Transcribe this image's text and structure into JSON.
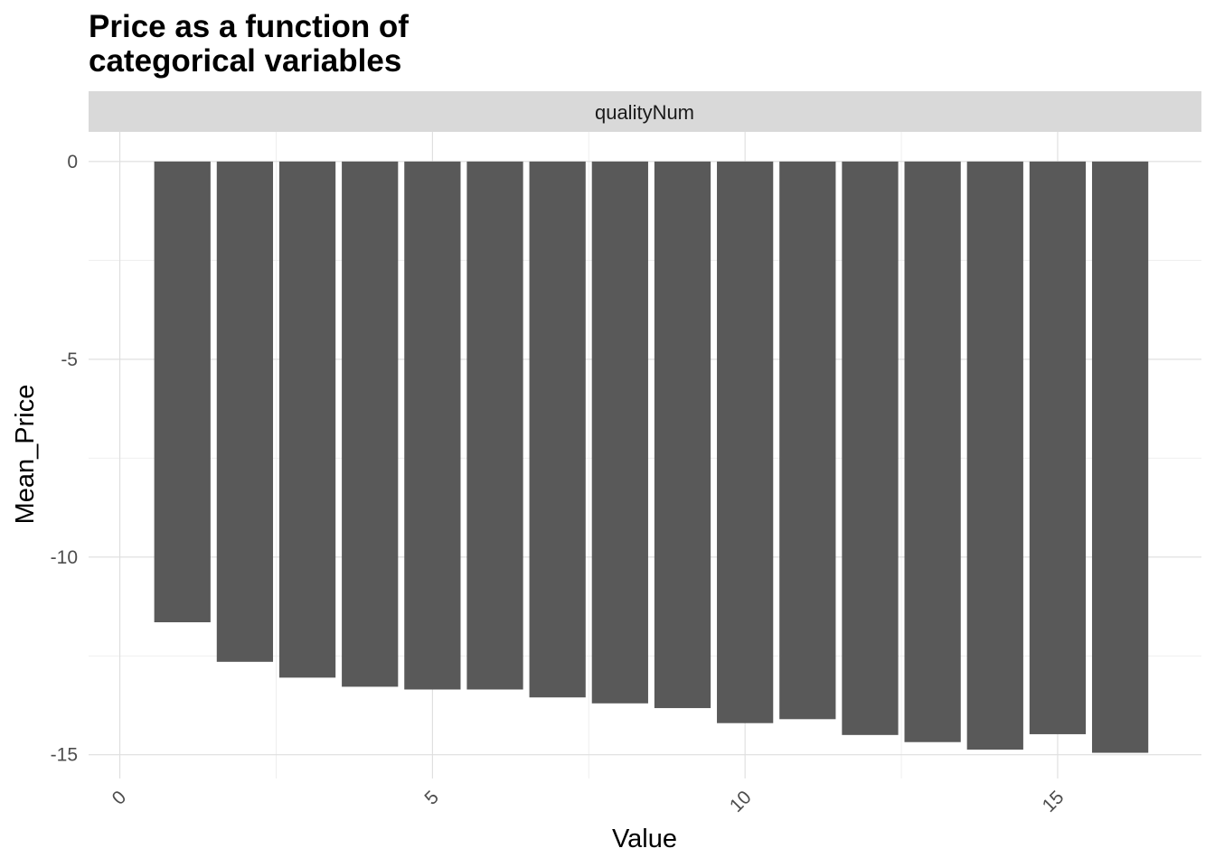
{
  "title_lines": [
    "Price as a function of",
    "categorical variables"
  ],
  "facet_label": "qualityNum",
  "colors": {
    "bar_fill": "#595959",
    "strip_fill": "#d9d9d9",
    "background": "#ffffff"
  },
  "chart_data": {
    "type": "bar",
    "xlabel": "Value",
    "ylabel": "Mean_Price",
    "xlim": [
      -0.5,
      17.3
    ],
    "ylim": [
      -15.6,
      0.75
    ],
    "x_ticks": [
      0,
      5,
      10,
      15
    ],
    "x_tick_labels": [
      "0",
      "5",
      "10",
      "15"
    ],
    "y_ticks": [
      0,
      -5,
      -10,
      -15
    ],
    "y_tick_labels": [
      "0",
      "-5",
      "-10",
      "-15"
    ],
    "grid": true,
    "legend": "none",
    "x": [
      1,
      2,
      3,
      4,
      5,
      6,
      7,
      8,
      9,
      10,
      11,
      12,
      13,
      14,
      15,
      16
    ],
    "values": [
      -11.65,
      -12.65,
      -13.05,
      -13.28,
      -13.35,
      -13.35,
      -13.55,
      -13.7,
      -13.82,
      -14.2,
      -14.1,
      -14.5,
      -14.68,
      -14.87,
      -14.48,
      -14.95
    ]
  }
}
